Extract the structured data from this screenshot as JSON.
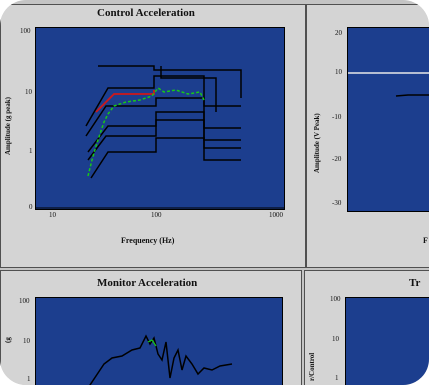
{
  "panels": {
    "control": {
      "title": "Control Acceleration",
      "ylabel": "Amplitude (g peak)",
      "xlabel": "Frequency (Hz)",
      "yticks": [
        "100",
        "10",
        "1",
        "0"
      ],
      "xticks": [
        "10",
        "100",
        "1000"
      ]
    },
    "phase": {
      "title": "",
      "ylabel": "Amplitude (V Peak)",
      "xlabel": "F",
      "yticks": [
        "20",
        "10",
        "-10",
        "-20",
        "-30"
      ]
    },
    "monitor": {
      "title": "Monitor Acceleration",
      "ylabel": "(g",
      "yticks": [
        "100",
        "10",
        "1"
      ]
    },
    "transfer": {
      "title": "Tr",
      "ylabel": "r/Control",
      "yticks": [
        "100",
        "10",
        "1"
      ]
    }
  },
  "colors": {
    "plot_bg": "#1c3e8e",
    "panel_bg": "#d4d4d4",
    "frame_bg": "#c4c4c4",
    "reference": "#d01818",
    "response": "#18c818",
    "tolerance": "#000000"
  }
}
